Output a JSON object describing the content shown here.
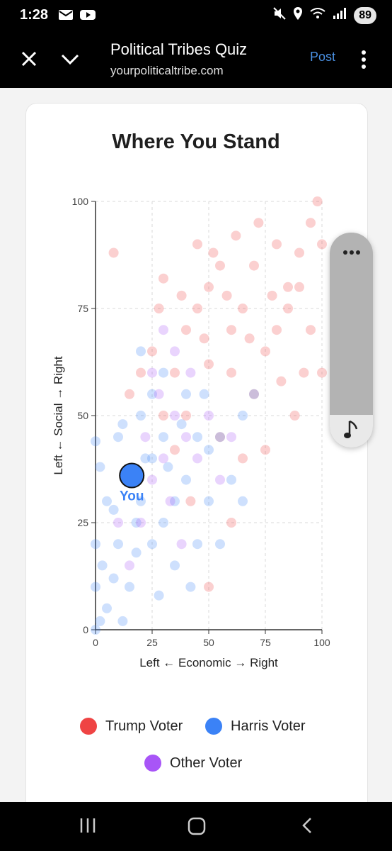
{
  "status_bar": {
    "time": "1:28",
    "battery": "89",
    "icons": [
      "mail-icon",
      "youtube-icon",
      "mute-icon",
      "location-icon",
      "wifi-icon",
      "signal-icon"
    ]
  },
  "header": {
    "title": "Political Tribes Quiz",
    "url": "yourpoliticaltribe.com",
    "post_label": "Post",
    "accent": "#4a90e2"
  },
  "card": {
    "title": "Where You Stand"
  },
  "chart_data": {
    "type": "scatter",
    "xlabel": "Left ← Economic → Right",
    "ylabel": "Left ← Social → Right",
    "xlim": [
      0,
      100
    ],
    "ylim": [
      0,
      100
    ],
    "xticks": [
      "0",
      "25",
      "50",
      "75",
      "100"
    ],
    "yticks": [
      "0",
      "25",
      "50",
      "75",
      "100"
    ],
    "grid": true,
    "series": [
      {
        "name": "Trump Voter",
        "color": "#ef4444",
        "values": [
          [
            95,
            95
          ],
          [
            80,
            90
          ],
          [
            70,
            85
          ],
          [
            85,
            80
          ],
          [
            90,
            88
          ],
          [
            65,
            75
          ],
          [
            60,
            70
          ],
          [
            75,
            65
          ],
          [
            50,
            80
          ],
          [
            45,
            75
          ],
          [
            55,
            85
          ],
          [
            40,
            70
          ],
          [
            35,
            60
          ],
          [
            60,
            60
          ],
          [
            70,
            55
          ],
          [
            80,
            70
          ],
          [
            85,
            75
          ],
          [
            92,
            60
          ],
          [
            88,
            50
          ],
          [
            98,
            100
          ],
          [
            72,
            95
          ],
          [
            62,
            92
          ],
          [
            52,
            88
          ],
          [
            30,
            82
          ],
          [
            28,
            75
          ],
          [
            25,
            65
          ],
          [
            45,
            90
          ],
          [
            50,
            62
          ],
          [
            40,
            50
          ],
          [
            55,
            45
          ],
          [
            65,
            40
          ],
          [
            95,
            70
          ],
          [
            78,
            78
          ],
          [
            68,
            68
          ],
          [
            58,
            78
          ],
          [
            48,
            68
          ],
          [
            38,
            78
          ],
          [
            20,
            60
          ],
          [
            15,
            55
          ],
          [
            8,
            88
          ],
          [
            30,
            50
          ],
          [
            35,
            42
          ],
          [
            42,
            30
          ],
          [
            50,
            10
          ],
          [
            60,
            25
          ],
          [
            75,
            42
          ],
          [
            82,
            58
          ],
          [
            90,
            80
          ],
          [
            100,
            90
          ],
          [
            100,
            60
          ]
        ]
      },
      {
        "name": "Harris Voter",
        "color": "#3b82f6",
        "values": [
          [
            0,
            0
          ],
          [
            0,
            10
          ],
          [
            0,
            20
          ],
          [
            5,
            30
          ],
          [
            10,
            20
          ],
          [
            15,
            10
          ],
          [
            20,
            30
          ],
          [
            25,
            40
          ],
          [
            30,
            25
          ],
          [
            35,
            15
          ],
          [
            40,
            35
          ],
          [
            45,
            20
          ],
          [
            50,
            30
          ],
          [
            55,
            45
          ],
          [
            60,
            35
          ],
          [
            65,
            50
          ],
          [
            70,
            55
          ],
          [
            10,
            45
          ],
          [
            20,
            50
          ],
          [
            5,
            5
          ],
          [
            12,
            2
          ],
          [
            2,
            38
          ],
          [
            8,
            28
          ],
          [
            18,
            18
          ],
          [
            28,
            8
          ],
          [
            22,
            40
          ],
          [
            30,
            45
          ],
          [
            38,
            48
          ],
          [
            48,
            55
          ],
          [
            25,
            55
          ],
          [
            15,
            35
          ],
          [
            3,
            15
          ],
          [
            12,
            48
          ],
          [
            35,
            30
          ],
          [
            42,
            10
          ],
          [
            55,
            20
          ],
          [
            65,
            30
          ],
          [
            40,
            55
          ],
          [
            30,
            60
          ],
          [
            20,
            65
          ],
          [
            45,
            45
          ],
          [
            25,
            20
          ],
          [
            8,
            12
          ],
          [
            18,
            25
          ],
          [
            32,
            38
          ],
          [
            50,
            42
          ],
          [
            0,
            44
          ],
          [
            2,
            2
          ]
        ]
      },
      {
        "name": "Other Voter",
        "color": "#a855f7",
        "values": [
          [
            25,
            35
          ],
          [
            30,
            40
          ],
          [
            35,
            50
          ],
          [
            40,
            45
          ],
          [
            20,
            25
          ],
          [
            15,
            15
          ],
          [
            45,
            40
          ],
          [
            28,
            55
          ],
          [
            33,
            30
          ],
          [
            38,
            20
          ],
          [
            22,
            45
          ],
          [
            18,
            35
          ],
          [
            50,
            50
          ],
          [
            42,
            60
          ],
          [
            30,
            70
          ],
          [
            55,
            35
          ],
          [
            60,
            45
          ],
          [
            25,
            60
          ],
          [
            10,
            25
          ],
          [
            35,
            65
          ]
        ]
      }
    ],
    "you": {
      "label": "You",
      "x": 16,
      "y": 36,
      "color": "#3b82f6"
    }
  },
  "legend": [
    {
      "label": "Trump Voter",
      "color": "#ef4444"
    },
    {
      "label": "Harris Voter",
      "color": "#3b82f6"
    },
    {
      "label": "Other Voter",
      "color": "#a855f7"
    }
  ]
}
